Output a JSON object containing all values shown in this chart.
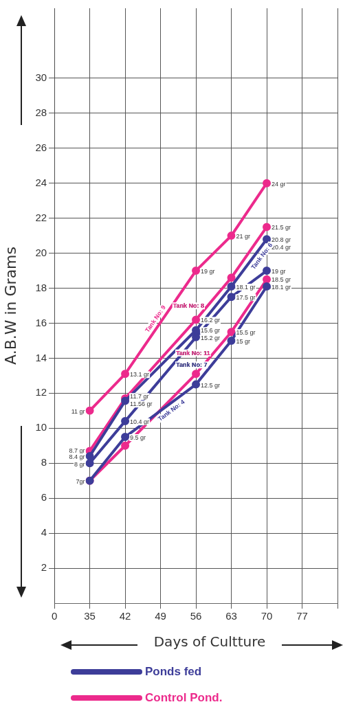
{
  "chart_data": {
    "type": "line",
    "xlabel": "Days of Cultture",
    "ylabel": "A.B.W in Grams",
    "categories": [
      "0",
      "35",
      "42",
      "49",
      "56",
      "63",
      "70",
      "77",
      null
    ],
    "ylim": [
      0,
      34
    ],
    "yticks": [
      2,
      4,
      6,
      8,
      10,
      12,
      14,
      16,
      18,
      20,
      22,
      24,
      26,
      28,
      30
    ],
    "grid": true,
    "marker": "circle",
    "legend": false,
    "series": [
      {
        "name": "Tank No: 6",
        "color": "#3d3d99",
        "values": [
          null,
          8.4,
          11.56,
          null,
          15.6,
          18.1,
          20.8,
          null,
          null
        ],
        "value_labels": [
          null,
          "8.4 gr",
          "11.56 gr",
          null,
          "15.6 gr",
          "18.1 gr",
          "20.8 gr",
          null,
          null
        ]
      },
      {
        "name": "Tank No: 7",
        "color": "#3d3d99",
        "values": [
          null,
          8.0,
          10.4,
          null,
          15.2,
          17.5,
          19.0,
          null,
          null
        ],
        "value_labels": [
          null,
          "8 gr",
          "10.4 gr",
          null,
          "15.2 gr",
          "17.5 gr",
          "19 gr",
          null,
          null
        ]
      },
      {
        "name": "Tank No: 4",
        "color": "#3d3d99",
        "values": [
          null,
          7.0,
          9.5,
          null,
          12.5,
          15.0,
          18.1,
          null,
          null
        ],
        "value_labels": [
          null,
          null,
          "9.5 gr",
          null,
          "12.5 gr",
          "15 gr",
          "18.1 gr",
          null,
          null
        ]
      },
      {
        "name": "Tank No: 9",
        "color": "#ec2a8c",
        "values": [
          null,
          11.0,
          13.1,
          null,
          19.0,
          21.0,
          24.0,
          null,
          null
        ],
        "value_labels": [
          null,
          "11 gr",
          "13.1 gr",
          null,
          "19 gr",
          "21 gr",
          "24 gr",
          null,
          null
        ]
      },
      {
        "name": "Tank No: 8",
        "color": "#ec2a8c",
        "values": [
          null,
          8.7,
          11.7,
          null,
          16.2,
          18.6,
          21.5,
          null,
          null
        ],
        "value_labels": [
          null,
          "8.7 gr",
          "11.7 gr",
          null,
          "16.2 gr",
          null,
          "21.5 gr",
          null,
          null
        ]
      },
      {
        "name": "Tank No: 11",
        "color": "#ec2a8c",
        "values": [
          null,
          7.0,
          9.0,
          null,
          13.1,
          15.5,
          18.5,
          null,
          null
        ],
        "value_labels": [
          null,
          "7gr",
          null,
          null,
          null,
          "15.5 gr",
          "18.5 gr",
          null,
          null
        ]
      }
    ],
    "annotations": [
      {
        "text": "20.4 gr",
        "x": "70",
        "y": 20.4
      },
      "Ponds fed",
      "Control Pond."
    ]
  }
}
